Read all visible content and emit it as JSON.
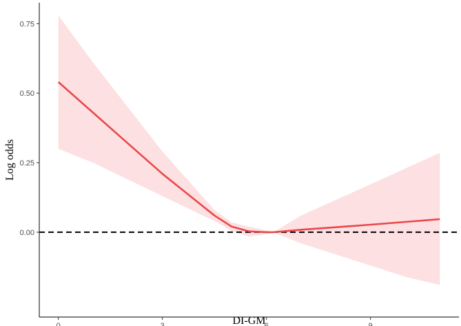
{
  "chart_data": {
    "type": "line",
    "title": "",
    "xlabel": "DI-GM",
    "ylabel": "Log odds",
    "xlim": [
      -0.55,
      11.55
    ],
    "ylim": [
      -0.305,
      0.825
    ],
    "x_ticks": [
      0,
      3,
      6,
      9
    ],
    "x_tick_labels": [
      "0",
      "3",
      "6",
      "9"
    ],
    "y_ticks": [
      0.0,
      0.25,
      0.5,
      0.75
    ],
    "y_tick_labels": [
      "0.00",
      "0.25",
      "0.50",
      "0.75"
    ],
    "grid": false,
    "legend": "none",
    "reference_line": {
      "y": 0,
      "style": "dashed",
      "color": "#000000"
    },
    "colors": {
      "line": "#e8474a",
      "band": "#fde0e1"
    },
    "series": [
      {
        "x": [
          0,
          1,
          2,
          3,
          4,
          4.5,
          5,
          5.5,
          6,
          6.2,
          7,
          8,
          9,
          10,
          11
        ],
        "y": [
          0.54,
          0.43,
          0.32,
          0.21,
          0.11,
          0.06,
          0.02,
          0.003,
          0.0,
          0.0,
          0.009,
          0.018,
          0.027,
          0.037,
          0.047
        ],
        "lower": [
          0.3,
          0.25,
          0.19,
          0.13,
          0.07,
          0.04,
          0.005,
          -0.016,
          -0.007,
          0.0,
          -0.04,
          -0.08,
          -0.12,
          -0.16,
          -0.19
        ],
        "upper": [
          0.78,
          0.61,
          0.45,
          0.29,
          0.15,
          0.08,
          0.035,
          0.02,
          0.006,
          0.0,
          0.06,
          0.116,
          0.172,
          0.229,
          0.285
        ]
      }
    ]
  }
}
